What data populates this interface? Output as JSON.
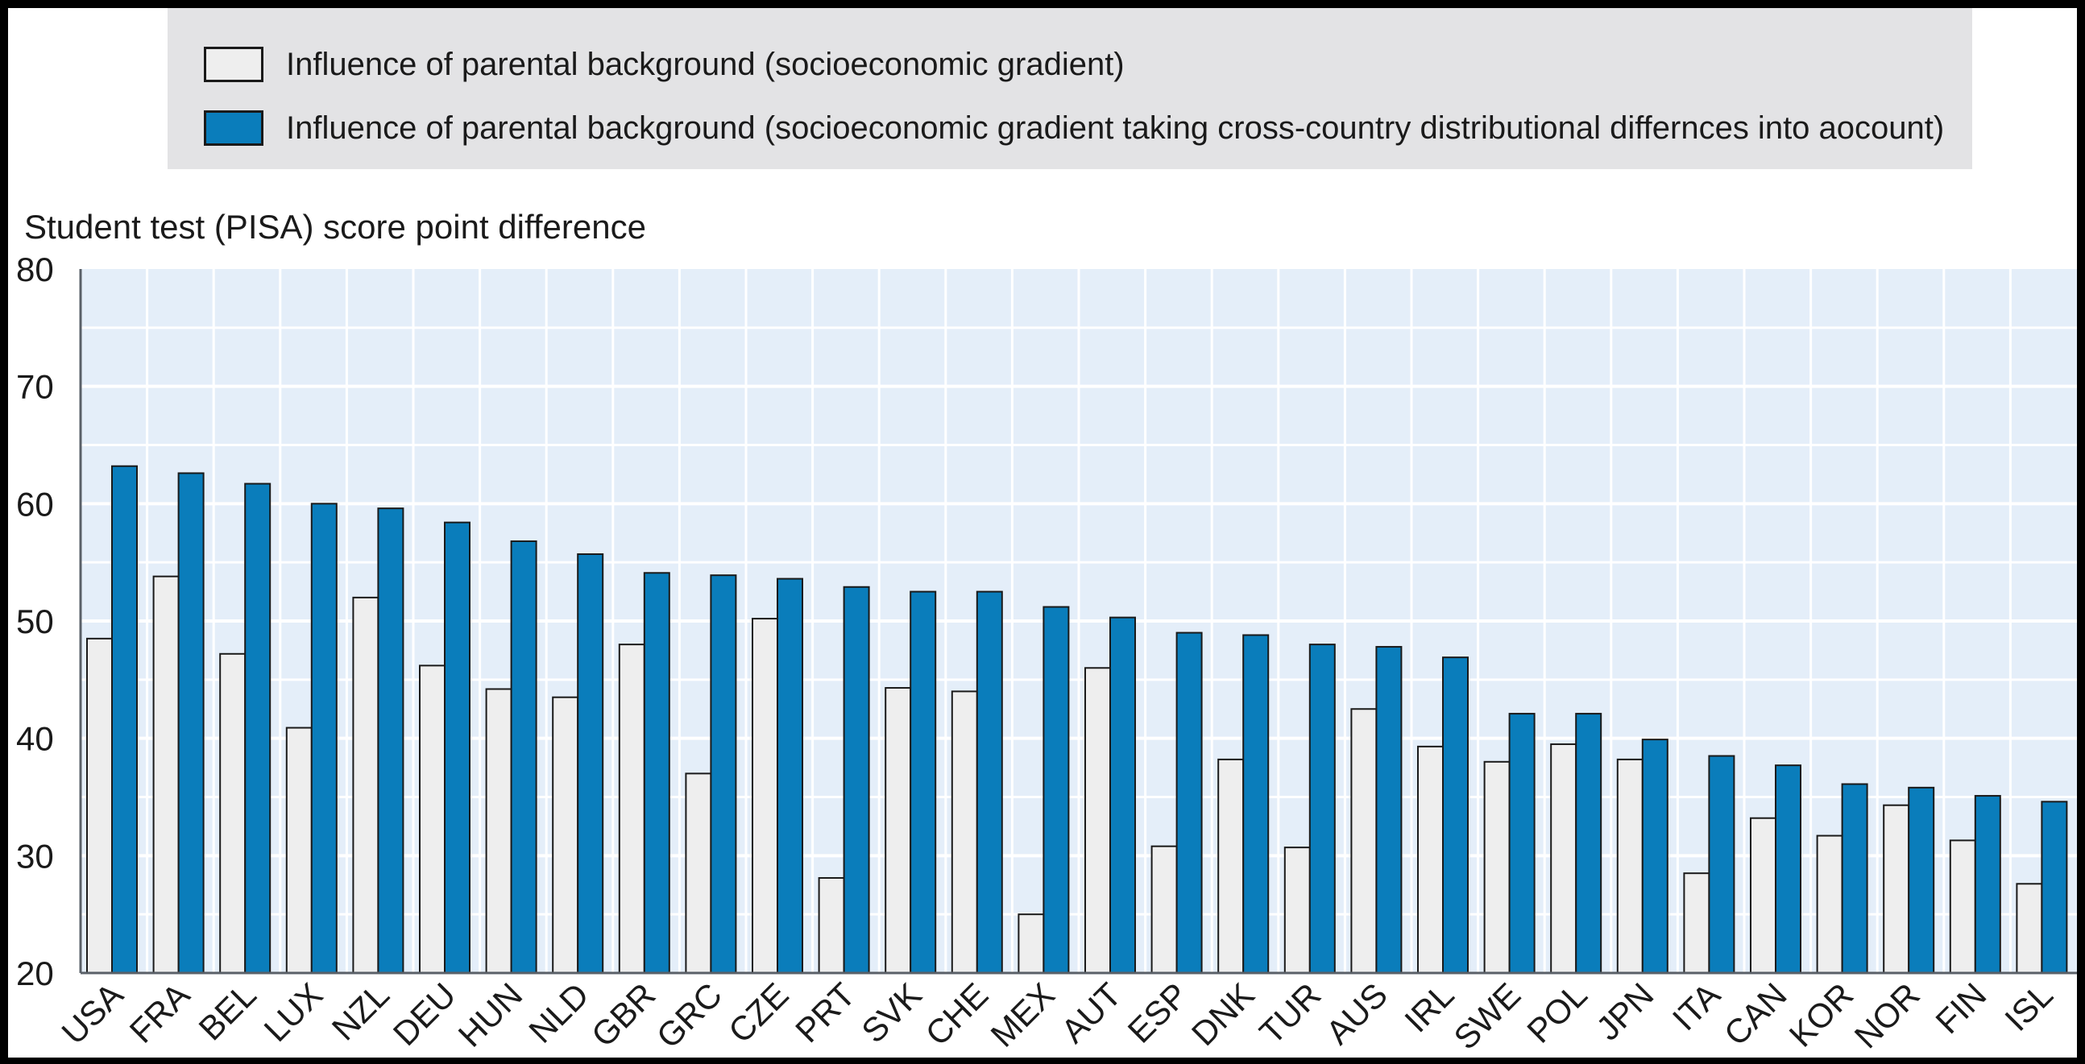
{
  "chart_data": {
    "type": "bar",
    "ylabel": "Student test (PISA) score point difference",
    "xlabel": "",
    "ylim": [
      20,
      80
    ],
    "yticks": [
      20,
      30,
      40,
      50,
      60,
      70,
      80
    ],
    "grid": true,
    "legend_position": "top",
    "categories": [
      "USA",
      "FRA",
      "BEL",
      "LUX",
      "NZL",
      "DEU",
      "HUN",
      "NLD",
      "GBR",
      "GRC",
      "CZE",
      "PRT",
      "SVK",
      "CHE",
      "MEX",
      "AUT",
      "ESP",
      "DNK",
      "TUR",
      "AUS",
      "IRL",
      "SWE",
      "POL",
      "JPN",
      "ITA",
      "CAN",
      "KOR",
      "NOR",
      "FIN",
      "ISL"
    ],
    "series": [
      {
        "name": "Influence of parental background (socioeconomic gradient)",
        "color": "#eeeeee",
        "values": [
          48.5,
          53.8,
          47.2,
          40.9,
          52.0,
          46.2,
          44.2,
          43.5,
          48.0,
          37.0,
          50.2,
          28.1,
          44.3,
          44.0,
          25.0,
          46.0,
          30.8,
          38.2,
          30.7,
          42.5,
          39.3,
          38.0,
          39.5,
          38.2,
          28.5,
          33.2,
          31.7,
          34.3,
          31.3,
          27.6
        ]
      },
      {
        "name": "Influence of parental background (socioeconomic gradient taking cross-country distributional differnces into aocount)",
        "color": "#0a7dbb",
        "values": [
          63.2,
          62.6,
          61.7,
          60.0,
          59.6,
          58.4,
          56.8,
          55.7,
          54.1,
          53.9,
          53.6,
          52.9,
          52.5,
          52.5,
          51.2,
          50.3,
          49.0,
          48.8,
          48.0,
          47.8,
          46.9,
          42.1,
          42.1,
          39.9,
          38.5,
          37.7,
          36.1,
          35.8,
          35.1,
          34.6
        ]
      }
    ]
  },
  "colors": {
    "plot_background": "#e4eef9",
    "gridline": "#ffffff",
    "axis": "#5a6068",
    "bar_outline": "#1a1a1a"
  }
}
